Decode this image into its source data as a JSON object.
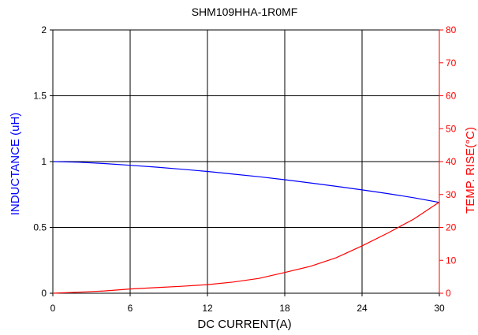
{
  "chart_data": {
    "type": "line",
    "title": "SHM109HHA-1R0MF",
    "xlabel": "DC CURRENT(A)",
    "ylabel": "INDUCTANCE (uH)",
    "y2label": "TEMP. RISE(°C)",
    "xlim": [
      0,
      30
    ],
    "ylim": [
      0,
      2
    ],
    "y2lim": [
      0,
      80
    ],
    "x_ticks": [
      "0",
      "6",
      "12",
      "18",
      "24",
      "30"
    ],
    "y_ticks": [
      "0",
      "0.5",
      "1",
      "1.5",
      "2"
    ],
    "y2_ticks": [
      "0",
      "10",
      "20",
      "30",
      "40",
      "50",
      "60",
      "70",
      "80"
    ],
    "grid": true,
    "colors": {
      "inductance": "#0000ff",
      "temp": "#ff0000",
      "grid": "#000000"
    },
    "series": [
      {
        "axis": "left",
        "x": [
          0,
          2,
          4,
          6,
          8,
          10,
          12,
          14,
          16,
          18,
          20,
          22,
          24,
          26,
          28,
          30
        ],
        "values": [
          1.0,
          0.995,
          0.985,
          0.972,
          0.958,
          0.942,
          0.925,
          0.905,
          0.885,
          0.862,
          0.838,
          0.812,
          0.785,
          0.757,
          0.726,
          0.69
        ]
      },
      {
        "axis": "right",
        "x": [
          0,
          2,
          4,
          6,
          8,
          10,
          12,
          14,
          16,
          18,
          20,
          22,
          24,
          26,
          28,
          30
        ],
        "values": [
          0.0,
          0.3,
          0.7,
          1.3,
          1.7,
          2.1,
          2.6,
          3.4,
          4.5,
          6.3,
          8.2,
          10.8,
          14.4,
          18.3,
          22.5,
          27.7
        ]
      }
    ]
  }
}
